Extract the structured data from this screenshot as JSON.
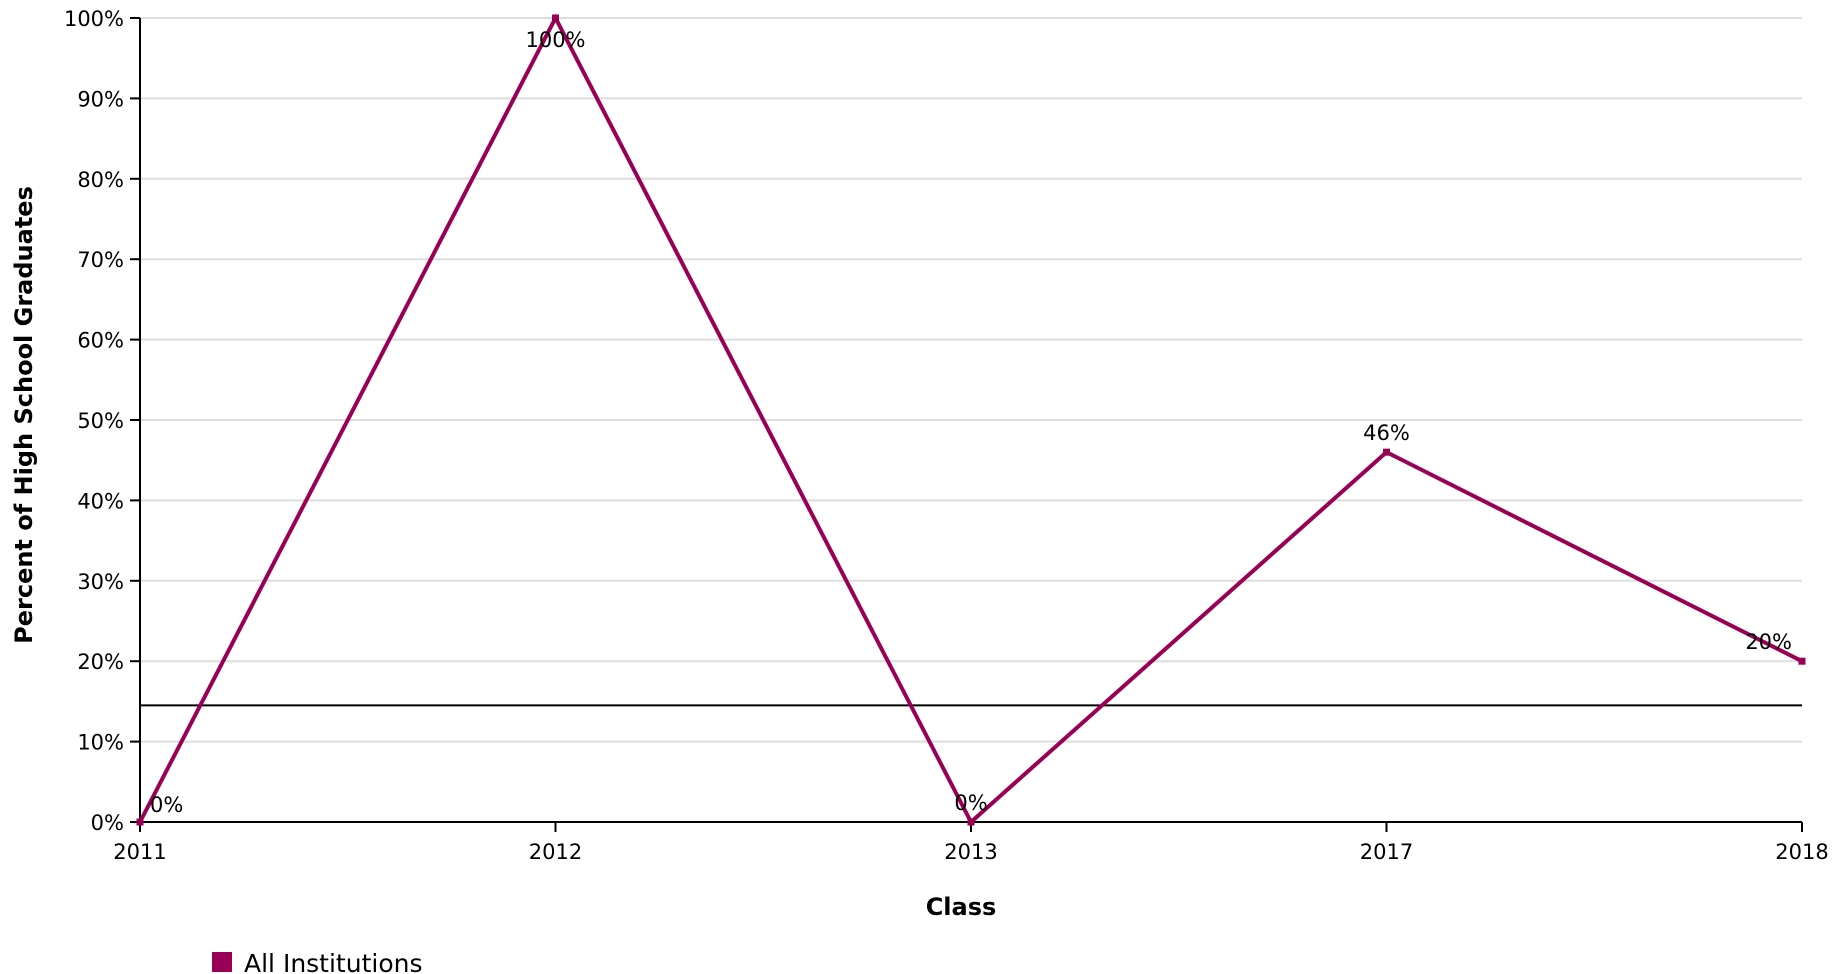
{
  "chart_data": {
    "type": "line",
    "xlabel": "Class",
    "ylabel": "Percent of High School Graduates",
    "categories": [
      "2011",
      "2012",
      "2013",
      "2017",
      "2018"
    ],
    "series": [
      {
        "name": "All Institutions",
        "values": [
          0,
          100,
          0,
          46,
          20
        ],
        "labels": [
          "0%",
          "100%",
          "0%",
          "46%",
          "20%"
        ],
        "color": "#990055"
      }
    ],
    "reference_line": {
      "value": 14.5,
      "color": "#000000"
    },
    "ylim": [
      0,
      100
    ],
    "yticks": [
      0,
      10,
      20,
      30,
      40,
      50,
      60,
      70,
      80,
      90,
      100
    ],
    "ytick_labels": [
      "0%",
      "10%",
      "20%",
      "30%",
      "40%",
      "50%",
      "60%",
      "70%",
      "80%",
      "90%",
      "100%"
    ],
    "grid": true,
    "grid_color": "#dddddd",
    "legend_position": "bottom-left"
  }
}
